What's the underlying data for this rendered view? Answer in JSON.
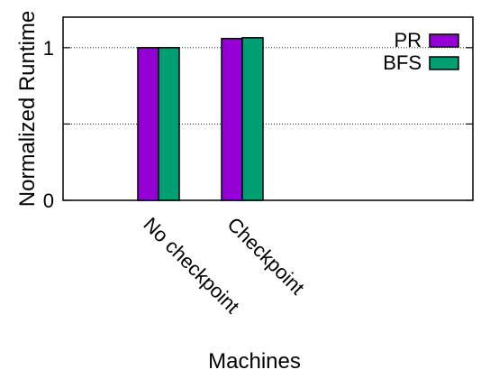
{
  "chart_data": {
    "type": "bar",
    "title": "",
    "xlabel": "Machines",
    "ylabel": "Normalized Runtime",
    "categories": [
      "No checkpoint",
      "Checkpoint"
    ],
    "series": [
      {
        "name": "PR",
        "color": "#9400d3",
        "values": [
          1.0,
          1.06
        ]
      },
      {
        "name": "BFS",
        "color": "#009e73",
        "values": [
          1.0,
          1.065
        ]
      }
    ],
    "ylim": [
      0,
      1.2
    ],
    "yticks": [
      {
        "value": 0,
        "label": "0"
      },
      {
        "value": 0.5,
        "label": ""
      },
      {
        "value": 1,
        "label": "1"
      }
    ],
    "grid": true,
    "legend": "top-right",
    "x_tick_rotation": "45deg"
  }
}
